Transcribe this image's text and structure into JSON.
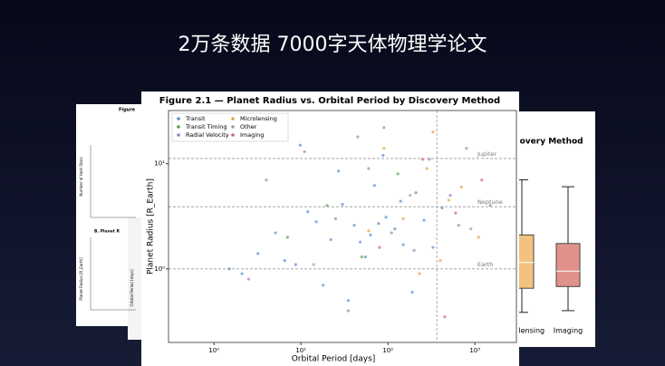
{
  "header": {
    "title": "2万条数据 7000字天体物理学论文"
  },
  "left_card": {
    "title": "Figure",
    "panel_a_ylabel": "Number of Host Stars",
    "panel_b_title": "B. Planet R",
    "panel_b_ylabel": "Planet Radius [R_Earth]",
    "panel_c_ylabel": "Orbital Period [days]"
  },
  "chart_data": [
    {
      "type": "scatter",
      "title": "Figure 2.1 — Planet Radius vs. Orbital Period by Discovery Method",
      "x_label": "Orbital Period [days]",
      "y_label": "Planet Radius [R_Earth]",
      "log_x": true,
      "log_y": true,
      "legend": "upper left",
      "xlim": [
        0.3,
        3000
      ],
      "ylim": [
        0.2,
        32
      ],
      "xticks": [
        {
          "value": 1,
          "label": "10⁰"
        },
        {
          "value": 10,
          "label": "10¹"
        },
        {
          "value": 100,
          "label": "10²"
        },
        {
          "value": 1000,
          "label": "10³"
        }
      ],
      "yticks": [
        {
          "value": 1,
          "label": "10⁰"
        },
        {
          "value": 10,
          "label": "10¹"
        }
      ],
      "hlines": [
        {
          "value": 11.2,
          "label": "Jupiter"
        },
        {
          "value": 3.9,
          "label": "Neptune"
        },
        {
          "value": 1,
          "label": "Earth"
        }
      ],
      "vline": 365,
      "series": [
        {
          "name": "Transit",
          "color": "#5b8fc7",
          "x": [
            3.2,
            5.1,
            8.7,
            12,
            15,
            22,
            30,
            41,
            55,
            70,
            95,
            120,
            150,
            210,
            260,
            330,
            420,
            2.1,
            6.5,
            18,
            27,
            48,
            63,
            88,
            140,
            190,
            1.5,
            9.8,
            35,
            78
          ],
          "values": [
            1.4,
            2.2,
            1.1,
            3.5,
            2.8,
            1.9,
            4.1,
            2.6,
            1.3,
            6.2,
            3.1,
            2.4,
            1.7,
            5.3,
            2.9,
            1.6,
            3.8,
            0.9,
            1.2,
            0.7,
            8.5,
            1.8,
            2.1,
            12,
            4.4,
            0.6,
            1.0,
            15,
            0.5,
            2.7
          ]
        },
        {
          "name": "Transit Timing",
          "color": "#59a14f",
          "x": [
            7,
            20,
            50,
            130
          ],
          "values": [
            2,
            4,
            1.3,
            8
          ]
        },
        {
          "name": "Radial Velocity",
          "color": "#9c7fb8",
          "x": [
            4,
            11,
            25,
            60,
            110,
            300,
            520,
            800,
            1500,
            2.5,
            45,
            200,
            650,
            90,
            35
          ],
          "values": [
            7,
            13,
            3,
            9,
            2.2,
            11,
            5,
            14,
            4,
            0.8,
            18,
            1.5,
            2.6,
            22,
            0.4
          ]
        },
        {
          "name": "Microlensing",
          "color": "#e69f45",
          "x": [
            150,
            280,
            400,
            700,
            1100,
            90,
            230,
            500,
            60,
            330
          ],
          "values": [
            3,
            9,
            1.2,
            6,
            2,
            14,
            0.9,
            4.5,
            2.3,
            20
          ]
        },
        {
          "name": "Other",
          "color": "#a0a0a0",
          "x": [
            14,
            180,
            900
          ],
          "values": [
            1.1,
            5,
            2.4
          ]
        },
        {
          "name": "Imaging",
          "color": "#d0676b",
          "x": [
            250,
            600,
            1200,
            80,
            450
          ],
          "values": [
            11,
            3.4,
            7,
            1.6,
            0.35
          ]
        }
      ]
    },
    {
      "type": "box",
      "title": "Discovery Method",
      "categories": [
        "Microlensing",
        "Imaging"
      ],
      "colors": [
        "#f2c27f",
        "#e0928a"
      ],
      "ylim": [
        0,
        10
      ],
      "boxes": [
        {
          "low": 0.8,
          "q1": 2.2,
          "median": 3.7,
          "q3": 5.3,
          "high": 8.5
        },
        {
          "low": 0.9,
          "q1": 2.3,
          "median": 3.2,
          "q3": 4.8,
          "high": 8.1
        }
      ]
    }
  ]
}
